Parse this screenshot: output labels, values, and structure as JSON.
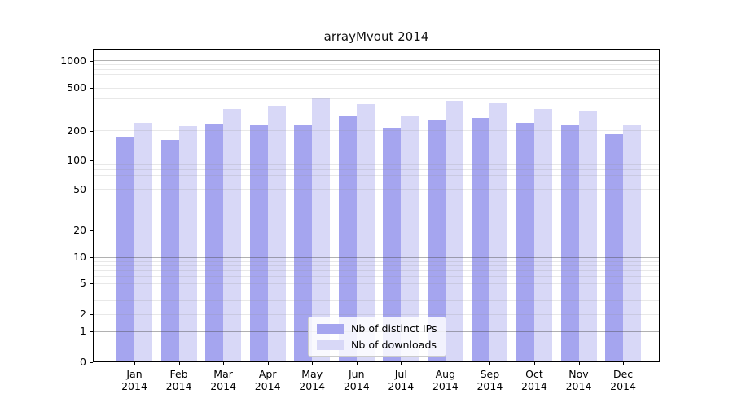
{
  "chart_data": {
    "type": "bar",
    "title": "arrayMvout 2014",
    "categories": [
      "Jan",
      "Feb",
      "Mar",
      "Apr",
      "May",
      "Jun",
      "Jul",
      "Aug",
      "Sep",
      "Oct",
      "Nov",
      "Dec"
    ],
    "category_year": "2014",
    "series": [
      {
        "name": "Nb of distinct IPs",
        "color": "#a5a5ef",
        "values": [
          174,
          162,
          234,
          231,
          228,
          272,
          215,
          256,
          264,
          239,
          231,
          185
        ]
      },
      {
        "name": "Nb of downloads",
        "color": "#d8d8f7",
        "values": [
          238,
          222,
          320,
          343,
          403,
          353,
          280,
          379,
          363,
          320,
          309,
          228
        ]
      }
    ],
    "y_axis": {
      "scale": "log-with-zero",
      "ticks": [
        0,
        1,
        2,
        5,
        10,
        20,
        50,
        100,
        200,
        500,
        1000
      ],
      "range": [
        0,
        1000
      ]
    },
    "grid": {
      "enabled": true,
      "minor_ticks": [
        3,
        4,
        6,
        7,
        8,
        9,
        30,
        40,
        60,
        70,
        80,
        90,
        300,
        400,
        600,
        700,
        800,
        900
      ],
      "decade_ticks": [
        1,
        10,
        100,
        1000
      ]
    },
    "legend": {
      "position": "lower center"
    },
    "layout_hints": {
      "y_anchor_fracs": [
        [
          0,
          1.0
        ],
        [
          1,
          0.9021
        ],
        [
          2,
          0.8468
        ],
        [
          5,
          0.7488
        ],
        [
          10,
          0.6662
        ],
        [
          20,
          0.5784
        ],
        [
          50,
          0.4486
        ],
        [
          100,
          0.3551
        ],
        [
          200,
          0.2623
        ],
        [
          500,
          0.1255
        ],
        [
          1000,
          0.0377
        ]
      ]
    }
  }
}
